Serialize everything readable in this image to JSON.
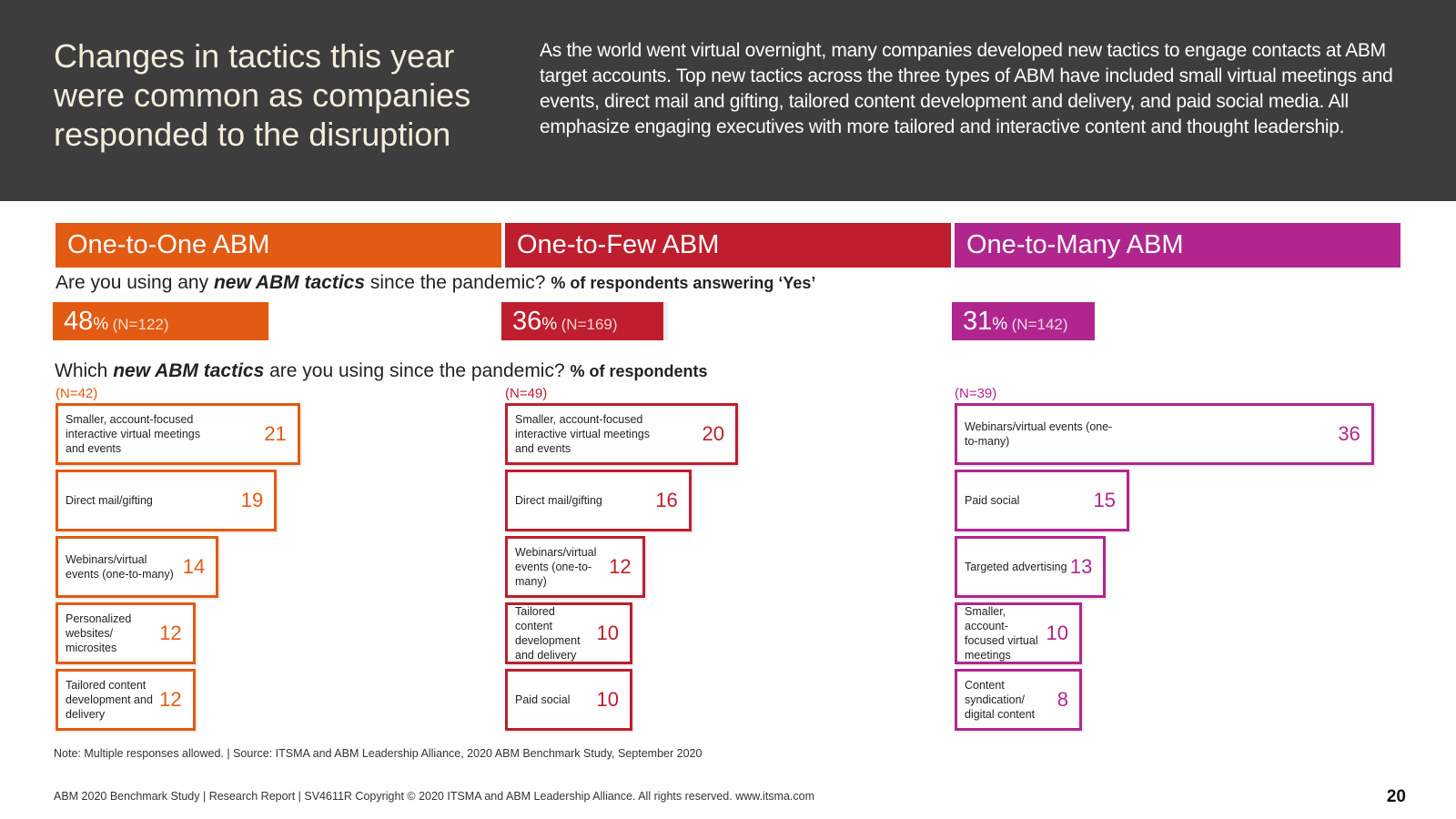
{
  "header": {
    "title": "Changes in tactics this year were common as companies responded to the disruption",
    "intro": "As the world went virtual overnight, many companies developed new tactics to engage contacts at ABM target accounts. Top new tactics across the three types of ABM have included small virtual meetings and events, direct mail and gifting, tailored content development and delivery, and paid social media. All emphasize engaging executives with more tailored and interactive content and thought leadership."
  },
  "question1": {
    "pre": "Are you using any ",
    "em": "new ABM tactics",
    "post": " since the pandemic? ",
    "sub": "% of respondents answering ‘Yes’"
  },
  "question2": {
    "pre": "Which ",
    "em": "new ABM tactics",
    "post": " are you using since the pandemic? ",
    "sub": "% of respondents"
  },
  "colors": {
    "one_to_one": "#e35a12",
    "one_to_few": "#be1e2d",
    "one_to_many": "#b0268e"
  },
  "chart_data": [
    {
      "type": "bar",
      "title": "One-to-One ABM",
      "pct_value": "48",
      "pct_unit": "%",
      "pct_n": "(N=122)",
      "n_label": "(N=42)",
      "categories": [
        "Smaller, account-focused interactive virtual meetings and events",
        "Direct mail/gifting",
        "Webinars/virtual events (one-to-many)",
        "Personalized websites/ microsites",
        "Tailored content development and delivery"
      ],
      "values": [
        21,
        19,
        14,
        12,
        12
      ]
    },
    {
      "type": "bar",
      "title": "One-to-Few ABM",
      "pct_value": "36",
      "pct_unit": "%",
      "pct_n": "(N=169)",
      "n_label": "(N=49)",
      "categories": [
        "Smaller, account-focused interactive virtual meetings and events",
        "Direct mail/gifting",
        "Webinars/virtual events (one-to-many)",
        "Tailored content development and delivery",
        "Paid social"
      ],
      "values": [
        20,
        16,
        12,
        10,
        10
      ]
    },
    {
      "type": "bar",
      "title": "One-to-Many ABM",
      "pct_value": "31",
      "pct_unit": "%",
      "pct_n": "(N=142)",
      "n_label": "(N=39)",
      "categories": [
        "Webinars/virtual events (one-to-many)",
        "Paid social",
        "Targeted advertising",
        "Smaller, account-focused virtual meetings",
        "Content syndication/ digital content"
      ],
      "values": [
        36,
        15,
        13,
        10,
        8
      ]
    }
  ],
  "note": "Note: Multiple responses allowed. | Source: ITSMA and ABM Leadership Alliance, 2020 ABM Benchmark Study, September 2020",
  "footer": "ABM 2020 Benchmark Study | Research Report | SV4611R Copyright © 2020 ITSMA and ABM Leadership Alliance. All rights reserved. www.itsma.com",
  "page_number": "20"
}
